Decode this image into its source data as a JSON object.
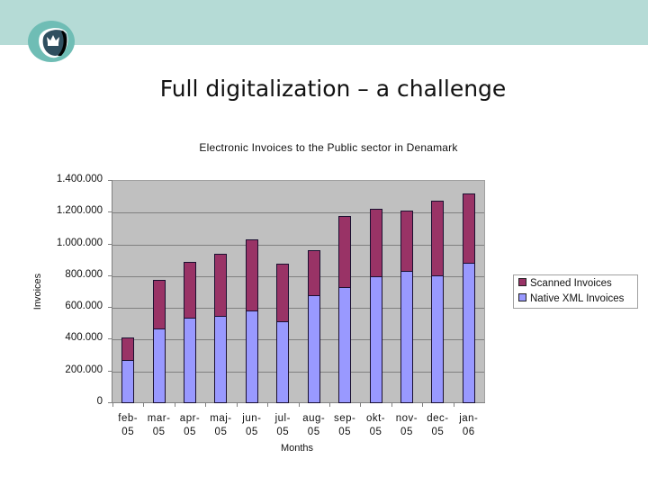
{
  "slide": {
    "title": "Full digitalization – a challenge",
    "logo_icon": "crown-shield-logo",
    "band_color": "#b5dbd6"
  },
  "chart_data": {
    "type": "bar",
    "stacked": true,
    "title": "Electronic Invoices to the Public sector in Denamark",
    "xlabel": "Months",
    "ylabel": "Invoices",
    "ylim": [
      0,
      1400000
    ],
    "yticks": [
      "0",
      "200.000",
      "400.000",
      "600.000",
      "800.000",
      "1.000.000",
      "1.200.000",
      "1.400.000"
    ],
    "grid": true,
    "legend_position": "right",
    "categories": [
      {
        "line1": "feb-",
        "line2": "05"
      },
      {
        "line1": "mar-",
        "line2": "05"
      },
      {
        "line1": "apr-",
        "line2": "05"
      },
      {
        "line1": "maj-",
        "line2": "05"
      },
      {
        "line1": "jun-",
        "line2": "05"
      },
      {
        "line1": "jul-",
        "line2": "05"
      },
      {
        "line1": "aug-",
        "line2": "05"
      },
      {
        "line1": "sep-",
        "line2": "05"
      },
      {
        "line1": "okt-",
        "line2": "05"
      },
      {
        "line1": "nov-",
        "line2": "05"
      },
      {
        "line1": "dec-",
        "line2": "05"
      },
      {
        "line1": "jan-",
        "line2": "06"
      }
    ],
    "series": [
      {
        "name": "Native XML Invoices",
        "color": "#9999ff",
        "values": [
          266000,
          464000,
          533000,
          542000,
          580000,
          511000,
          674000,
          728000,
          795000,
          826000,
          800000,
          879000
        ]
      },
      {
        "name": "Scanned Invoices",
        "color": "#993366",
        "values": [
          140000,
          306000,
          350000,
          395000,
          447000,
          363000,
          284000,
          444000,
          425000,
          379000,
          468000,
          437000
        ]
      }
    ],
    "totals": [
      406000,
      770000,
      883000,
      937000,
      1027000,
      874000,
      958000,
      1172000,
      1220000,
      1205000,
      1268000,
      1316000
    ],
    "legend": [
      "Scanned Invoices",
      "Native XML Invoices"
    ]
  }
}
